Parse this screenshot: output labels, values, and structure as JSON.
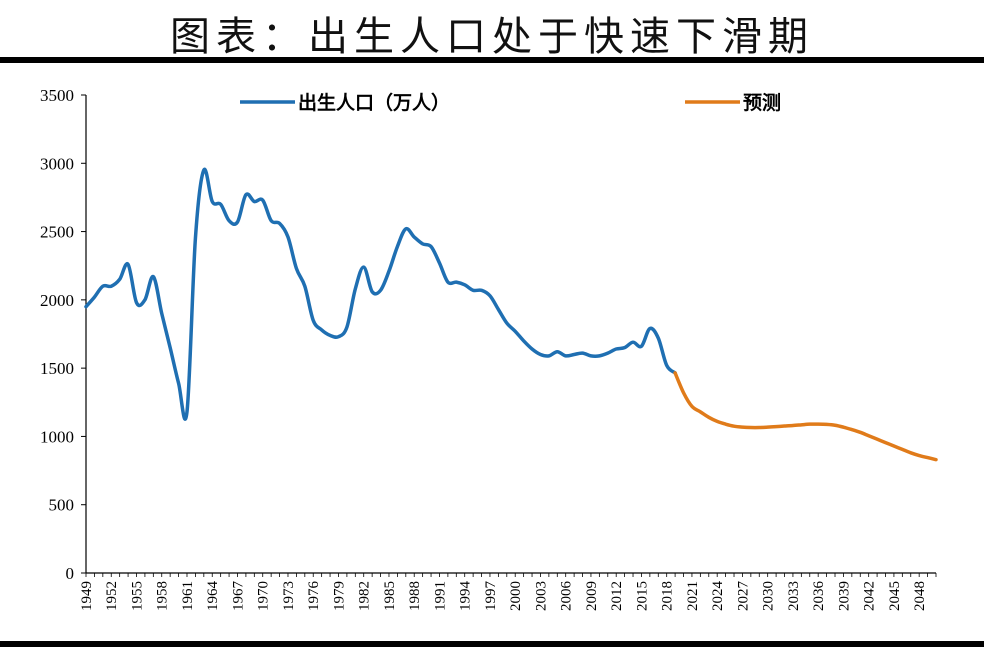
{
  "chart_data": {
    "type": "line",
    "title": "图表：出生人口处于快速下滑期",
    "xlabel": "",
    "ylabel": "",
    "ylim": [
      0,
      3500
    ],
    "yticks": [
      0,
      500,
      1000,
      1500,
      2000,
      2500,
      3000,
      3500
    ],
    "xlim": [
      1949,
      2050
    ],
    "xticks": [
      1949,
      1952,
      1955,
      1958,
      1961,
      1964,
      1967,
      1970,
      1973,
      1976,
      1979,
      1982,
      1985,
      1988,
      1991,
      1994,
      1997,
      2000,
      2003,
      2006,
      2009,
      2012,
      2015,
      2018,
      2021,
      2024,
      2027,
      2030,
      2033,
      2036,
      2039,
      2042,
      2045,
      2048
    ],
    "grid": false,
    "legend_position": "top",
    "series": [
      {
        "name": "出生人口（万人）",
        "color": "#1f6fb2",
        "x": [
          1949,
          1950,
          1951,
          1952,
          1953,
          1954,
          1955,
          1956,
          1957,
          1958,
          1959,
          1960,
          1961,
          1962,
          1963,
          1964,
          1965,
          1966,
          1967,
          1968,
          1969,
          1970,
          1971,
          1972,
          1973,
          1974,
          1975,
          1976,
          1977,
          1978,
          1979,
          1980,
          1981,
          1982,
          1983,
          1984,
          1985,
          1986,
          1987,
          1988,
          1989,
          1990,
          1991,
          1992,
          1993,
          1994,
          1995,
          1996,
          1997,
          1998,
          1999,
          2000,
          2001,
          2002,
          2003,
          2004,
          2005,
          2006,
          2007,
          2008,
          2009,
          2010,
          2011,
          2012,
          2013,
          2014,
          2015,
          2016,
          2017,
          2018,
          2019
        ],
        "y": [
          1950,
          2020,
          2100,
          2100,
          2150,
          2260,
          1980,
          2000,
          2170,
          1900,
          1650,
          1390,
          1180,
          2450,
          2950,
          2720,
          2700,
          2580,
          2570,
          2770,
          2720,
          2730,
          2580,
          2560,
          2460,
          2230,
          2100,
          1850,
          1780,
          1740,
          1730,
          1800,
          2080,
          2240,
          2060,
          2070,
          2210,
          2390,
          2520,
          2460,
          2410,
          2390,
          2270,
          2130,
          2130,
          2110,
          2070,
          2070,
          2030,
          1930,
          1830,
          1770,
          1700,
          1640,
          1600,
          1590,
          1620,
          1590,
          1600,
          1610,
          1590,
          1590,
          1610,
          1640,
          1650,
          1690,
          1660,
          1790,
          1720,
          1520,
          1465
        ]
      },
      {
        "name": "预测",
        "color": "#e07b1a",
        "x": [
          2019,
          2020,
          2021,
          2022,
          2023,
          2024,
          2025,
          2026,
          2027,
          2028,
          2029,
          2030,
          2031,
          2032,
          2033,
          2034,
          2035,
          2036,
          2037,
          2038,
          2039,
          2040,
          2041,
          2042,
          2043,
          2044,
          2045,
          2046,
          2047,
          2048,
          2049,
          2050
        ],
        "y": [
          1465,
          1320,
          1220,
          1180,
          1140,
          1110,
          1090,
          1075,
          1068,
          1065,
          1065,
          1068,
          1072,
          1076,
          1080,
          1085,
          1090,
          1090,
          1088,
          1082,
          1068,
          1050,
          1030,
          1005,
          980,
          955,
          930,
          905,
          880,
          860,
          845,
          830
        ]
      }
    ]
  }
}
